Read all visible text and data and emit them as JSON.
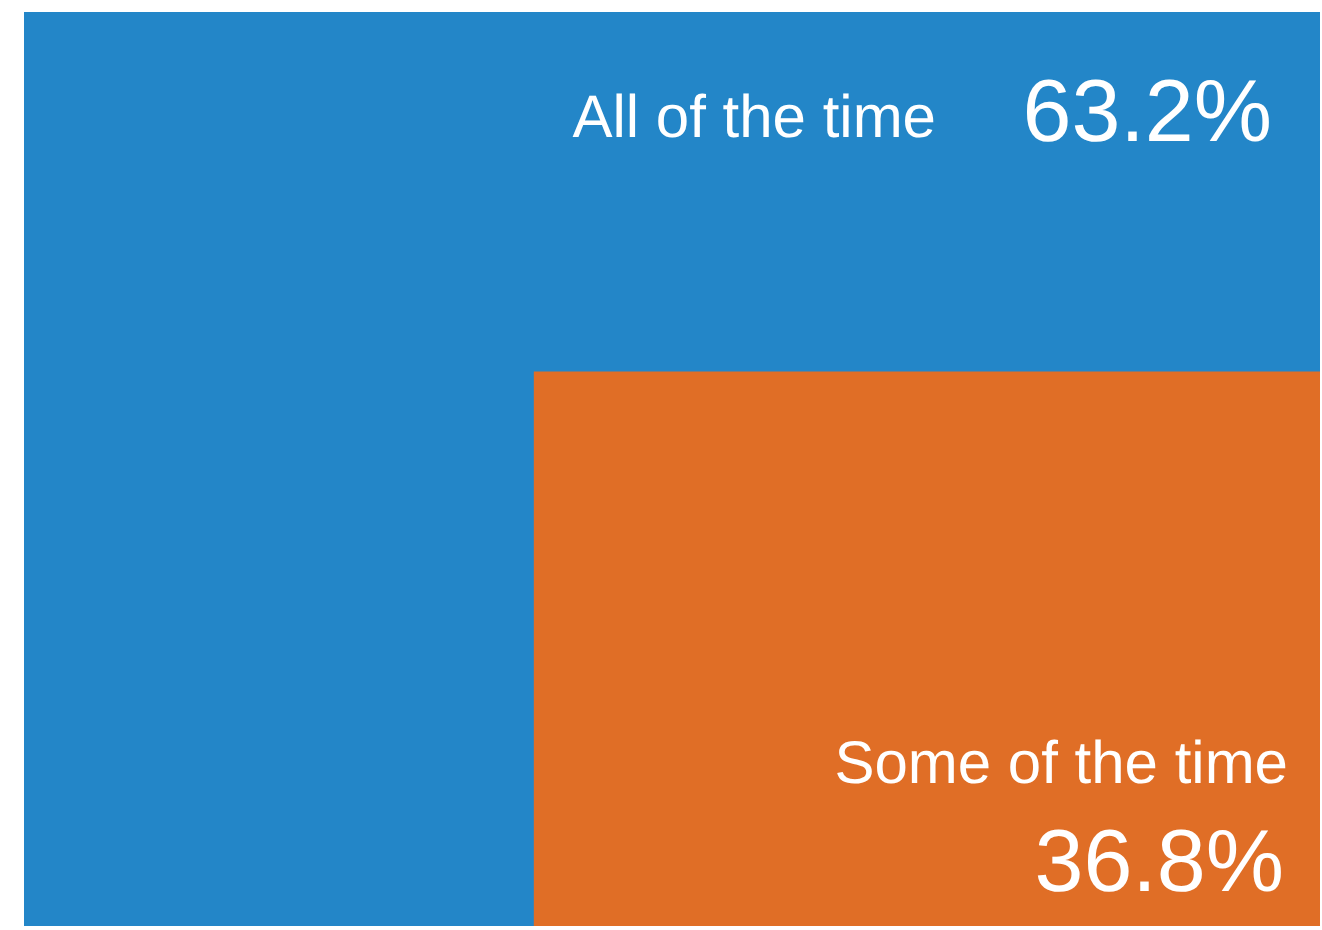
{
  "chart_data": {
    "type": "other",
    "categories": [
      "All of the time",
      "Some of the time"
    ],
    "values": [
      63.2,
      36.8
    ],
    "value_labels": [
      "63.2%",
      "36.8%"
    ],
    "colors": [
      "#2386c8",
      "#e06e26"
    ]
  }
}
